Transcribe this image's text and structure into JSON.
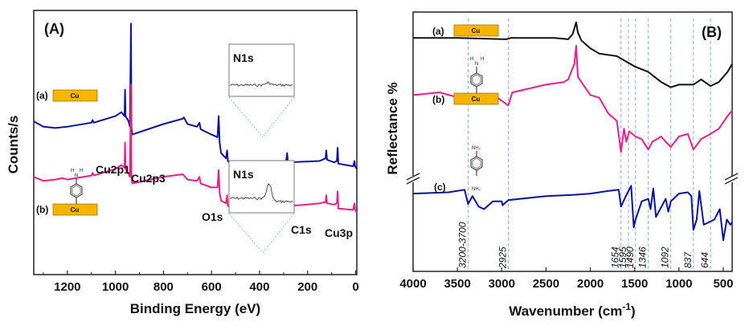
{
  "colors": {
    "blue": "#0a14a0",
    "pink": "#ec1e8c",
    "black": "#111111",
    "cu_fill": "#f6b400",
    "guide": "#7ea6e0"
  },
  "chart_data": [
    {
      "type": "line",
      "panel_label": "(A)",
      "xlabel": "Binding Energy (eV)",
      "ylabel": "Counts/s",
      "xlim": [
        1340,
        -5
      ],
      "x_reversed": true,
      "xticks": [
        1200,
        1000,
        800,
        600,
        400,
        200,
        0
      ],
      "grid": false,
      "series": [
        {
          "name": "(a)",
          "substrate": "Cu",
          "color": "#0a14a0",
          "points": [
            [
              1340,
              0.58
            ],
            [
              1300,
              0.56
            ],
            [
              1250,
              0.555
            ],
            [
              1200,
              0.56
            ],
            [
              1100,
              0.575
            ],
            [
              1095,
              0.585
            ],
            [
              1090,
              0.575
            ],
            [
              1000,
              0.6
            ],
            [
              975,
              0.615
            ],
            [
              962,
              0.6
            ],
            [
              960,
              0.7
            ],
            [
              958,
              0.6
            ],
            [
              945,
              0.58
            ],
            [
              940,
              0.56
            ],
            [
              935,
              0.95
            ],
            [
              933,
              0.56
            ],
            [
              930,
              0.53
            ],
            [
              800,
              0.57
            ],
            [
              720,
              0.59
            ],
            [
              715,
              0.595
            ],
            [
              700,
              0.57
            ],
            [
              660,
              0.56
            ],
            [
              650,
              0.575
            ],
            [
              645,
              0.55
            ],
            [
              600,
              0.53
            ],
            [
              575,
              0.52
            ],
            [
              570,
              0.6
            ],
            [
              566,
              0.5
            ],
            [
              560,
              0.46
            ],
            [
              540,
              0.44
            ],
            [
              535,
              0.47
            ],
            [
              532,
              0.43
            ],
            [
              520,
              0.42
            ],
            [
              400,
              0.42
            ],
            [
              290,
              0.425
            ],
            [
              285,
              0.46
            ],
            [
              282,
              0.425
            ],
            [
              150,
              0.43
            ],
            [
              125,
              0.44
            ],
            [
              122,
              0.47
            ],
            [
              119,
              0.435
            ],
            [
              90,
              0.425
            ],
            [
              78,
              0.43
            ],
            [
              75,
              0.48
            ],
            [
              72,
              0.42
            ],
            [
              10,
              0.41
            ],
            [
              5,
              0.43
            ],
            [
              2,
              0.41
            ],
            [
              -5,
              0.4
            ]
          ]
        },
        {
          "name": "(b)",
          "substrate": "Cu",
          "color": "#ec1e8c",
          "points": [
            [
              1340,
              0.37
            ],
            [
              1300,
              0.355
            ],
            [
              1250,
              0.36
            ],
            [
              1220,
              0.365
            ],
            [
              1200,
              0.36
            ],
            [
              1100,
              0.375
            ],
            [
              1095,
              0.385
            ],
            [
              1090,
              0.375
            ],
            [
              1000,
              0.4
            ],
            [
              975,
              0.415
            ],
            [
              962,
              0.405
            ],
            [
              960,
              0.5
            ],
            [
              958,
              0.4
            ],
            [
              945,
              0.38
            ],
            [
              940,
              0.37
            ],
            [
              935,
              0.72
            ],
            [
              933,
              0.37
            ],
            [
              930,
              0.345
            ],
            [
              800,
              0.37
            ],
            [
              720,
              0.38
            ],
            [
              715,
              0.375
            ],
            [
              700,
              0.36
            ],
            [
              660,
              0.355
            ],
            [
              650,
              0.37
            ],
            [
              645,
              0.345
            ],
            [
              600,
              0.33
            ],
            [
              575,
              0.33
            ],
            [
              570,
              0.395
            ],
            [
              566,
              0.31
            ],
            [
              560,
              0.28
            ],
            [
              540,
              0.27
            ],
            [
              535,
              0.3
            ],
            [
              532,
              0.26
            ],
            [
              520,
              0.255
            ],
            [
              400,
              0.255
            ],
            [
              290,
              0.26
            ],
            [
              285,
              0.295
            ],
            [
              282,
              0.26
            ],
            [
              200,
              0.265
            ],
            [
              150,
              0.27
            ],
            [
              125,
              0.275
            ],
            [
              122,
              0.3
            ],
            [
              119,
              0.27
            ],
            [
              90,
              0.265
            ],
            [
              78,
              0.27
            ],
            [
              75,
              0.315
            ],
            [
              72,
              0.25
            ],
            [
              10,
              0.245
            ],
            [
              5,
              0.27
            ],
            [
              2,
              0.245
            ],
            [
              -5,
              0.235
            ]
          ]
        }
      ],
      "annotations": [
        "Cu2p1",
        "Cu2p3",
        "O1s",
        "C1s",
        "Cu3p"
      ],
      "insets": [
        {
          "title": "N1s",
          "series": "(a)",
          "feature": "no peak"
        },
        {
          "title": "N1s",
          "series": "(b)",
          "feature": "peak near 400 eV"
        }
      ]
    },
    {
      "type": "line",
      "panel_label": "(B)",
      "xlabel": "Wavenumber (cm",
      "xlabel_sup": "-1",
      "xlabel_end": ")",
      "ylabel": "Reflectance %",
      "xlim": [
        4000,
        400
      ],
      "x_reversed": true,
      "xticks": [
        4000,
        3500,
        3000,
        2500,
        2000,
        1500,
        1000,
        500
      ],
      "grid": false,
      "y_axis_break": true,
      "band_guides": [
        {
          "label": "3200-3700",
          "x": 3380
        },
        {
          "label": "2925",
          "x": 2925
        },
        {
          "label": "1654",
          "x": 1654
        },
        {
          "label": "1595",
          "x": 1570
        },
        {
          "label": "1490",
          "x": 1490
        },
        {
          "label": "1346",
          "x": 1346
        },
        {
          "label": "1092",
          "x": 1092
        },
        {
          "label": "837",
          "x": 837
        },
        {
          "label": "644",
          "x": 644
        }
      ],
      "series": [
        {
          "name": "(a)",
          "substrate": "Cu",
          "color": "#111111",
          "points": [
            [
              4000,
              0.9
            ],
            [
              3500,
              0.9
            ],
            [
              2950,
              0.895
            ],
            [
              2900,
              0.9
            ],
            [
              2400,
              0.9
            ],
            [
              2250,
              0.895
            ],
            [
              2200,
              0.915
            ],
            [
              2160,
              0.96
            ],
            [
              2140,
              0.92
            ],
            [
              2100,
              0.89
            ],
            [
              2000,
              0.86
            ],
            [
              1900,
              0.84
            ],
            [
              1700,
              0.83
            ],
            [
              1600,
              0.81
            ],
            [
              1500,
              0.79
            ],
            [
              1350,
              0.77
            ],
            [
              1200,
              0.73
            ],
            [
              1092,
              0.71
            ],
            [
              1000,
              0.72
            ],
            [
              837,
              0.72
            ],
            [
              750,
              0.74
            ],
            [
              644,
              0.715
            ],
            [
              550,
              0.73
            ],
            [
              450,
              0.77
            ],
            [
              400,
              0.8
            ]
          ]
        },
        {
          "name": "(b)",
          "substrate": "Cu + 4-aminothiophenol",
          "color": "#ec1e8c",
          "points": [
            [
              4000,
              0.68
            ],
            [
              3700,
              0.69
            ],
            [
              3380,
              0.66
            ],
            [
              3050,
              0.67
            ],
            [
              2925,
              0.64
            ],
            [
              2880,
              0.69
            ],
            [
              2500,
              0.72
            ],
            [
              2300,
              0.73
            ],
            [
              2250,
              0.74
            ],
            [
              2180,
              0.8
            ],
            [
              2160,
              0.87
            ],
            [
              2140,
              0.75
            ],
            [
              2000,
              0.68
            ],
            [
              1900,
              0.67
            ],
            [
              1800,
              0.61
            ],
            [
              1700,
              0.58
            ],
            [
              1654,
              0.46
            ],
            [
              1620,
              0.55
            ],
            [
              1595,
              0.5
            ],
            [
              1560,
              0.54
            ],
            [
              1490,
              0.52
            ],
            [
              1420,
              0.51
            ],
            [
              1346,
              0.47
            ],
            [
              1300,
              0.5
            ],
            [
              1200,
              0.52
            ],
            [
              1150,
              0.5
            ],
            [
              1092,
              0.48
            ],
            [
              1000,
              0.52
            ],
            [
              900,
              0.53
            ],
            [
              837,
              0.47
            ],
            [
              750,
              0.51
            ],
            [
              644,
              0.53
            ],
            [
              550,
              0.55
            ],
            [
              450,
              0.6
            ],
            [
              400,
              0.62
            ]
          ]
        },
        {
          "name": "(c)",
          "substrate": "p-phenylenediamine",
          "color": "#0a14a0",
          "points": [
            [
              4000,
              0.3
            ],
            [
              3600,
              0.305
            ],
            [
              3420,
              0.315
            ],
            [
              3380,
              0.26
            ],
            [
              3330,
              0.29
            ],
            [
              3260,
              0.25
            ],
            [
              3200,
              0.24
            ],
            [
              3100,
              0.27
            ],
            [
              3000,
              0.27
            ],
            [
              2990,
              0.255
            ],
            [
              2925,
              0.275
            ],
            [
              2500,
              0.29
            ],
            [
              2200,
              0.295
            ],
            [
              2000,
              0.3
            ],
            [
              1800,
              0.31
            ],
            [
              1680,
              0.315
            ],
            [
              1654,
              0.25
            ],
            [
              1600,
              0.29
            ],
            [
              1540,
              0.33
            ],
            [
              1510,
              0.17
            ],
            [
              1490,
              0.2
            ],
            [
              1420,
              0.27
            ],
            [
              1346,
              0.28
            ],
            [
              1320,
              0.24
            ],
            [
              1290,
              0.32
            ],
            [
              1260,
              0.21
            ],
            [
              1150,
              0.28
            ],
            [
              1120,
              0.23
            ],
            [
              1092,
              0.27
            ],
            [
              1000,
              0.3
            ],
            [
              900,
              0.305
            ],
            [
              860,
              0.29
            ],
            [
              837,
              0.16
            ],
            [
              800,
              0.2
            ],
            [
              770,
              0.31
            ],
            [
              720,
              0.18
            ],
            [
              600,
              0.2
            ],
            [
              540,
              0.24
            ],
            [
              500,
              0.12
            ],
            [
              460,
              0.2
            ],
            [
              420,
              0.18
            ],
            [
              400,
              0.19
            ]
          ]
        }
      ]
    }
  ]
}
